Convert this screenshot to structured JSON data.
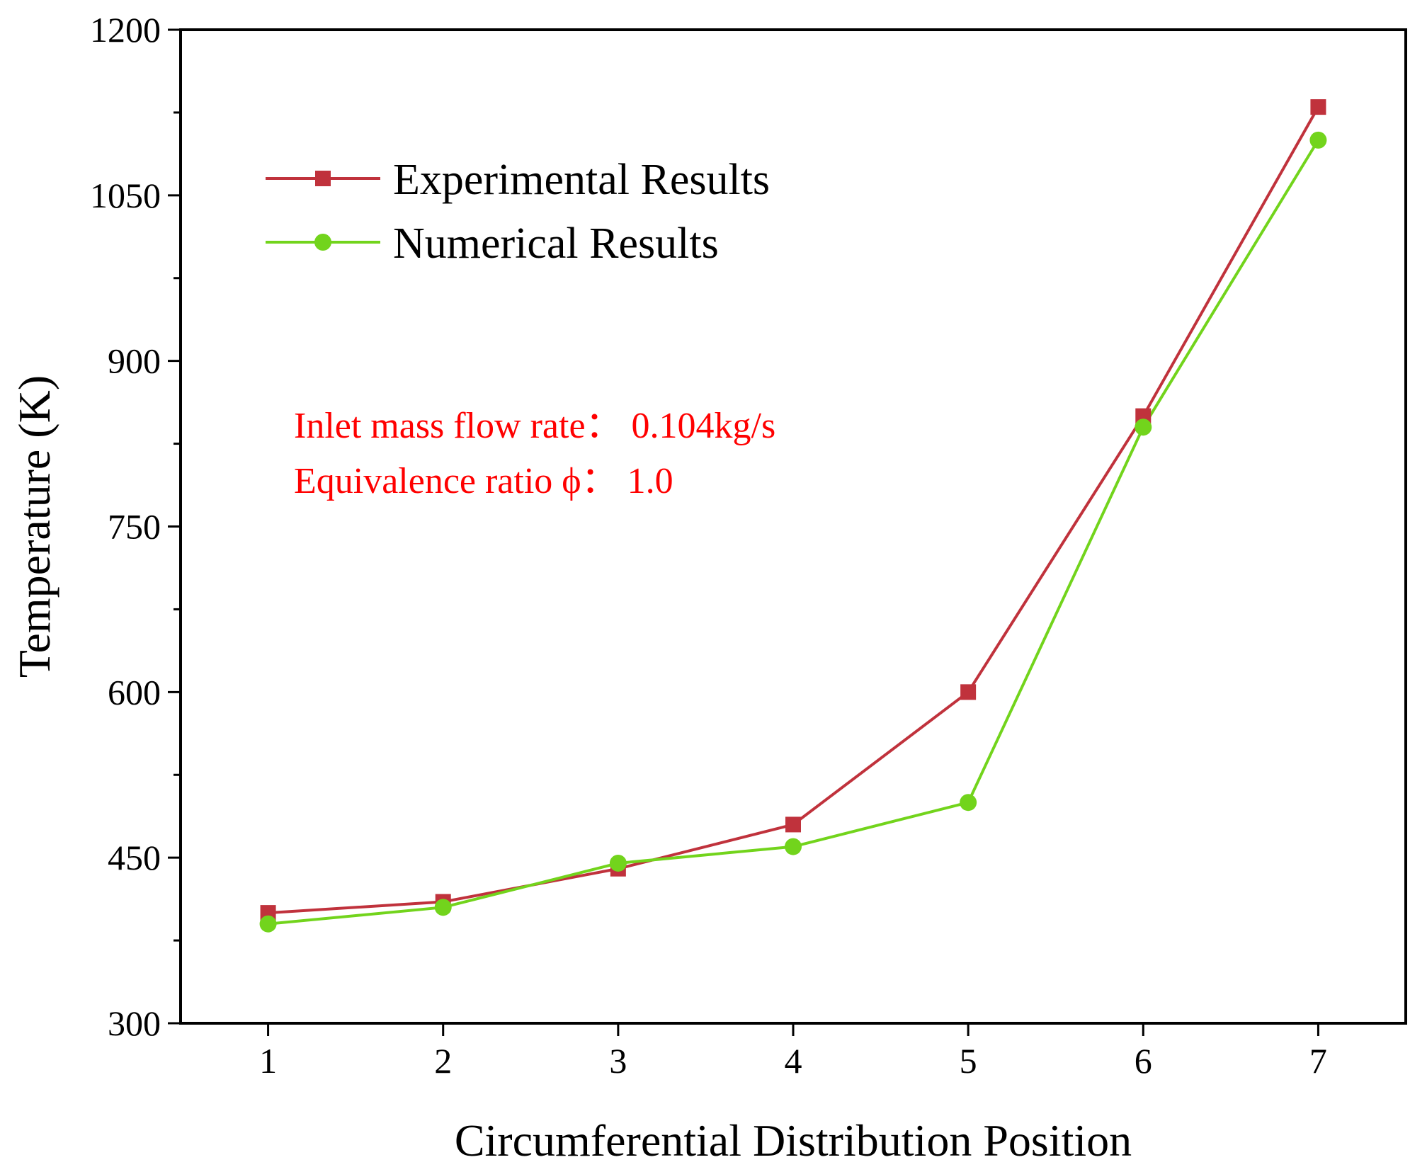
{
  "chart_data": {
    "type": "line",
    "title": "",
    "xlabel": "Circumferential Distribution Position",
    "ylabel": "Temperature (K)",
    "x": [
      1,
      2,
      3,
      4,
      5,
      6,
      7
    ],
    "xlim": [
      0.5,
      7.5
    ],
    "ylim": [
      300,
      1200
    ],
    "x_ticks": [
      1,
      2,
      3,
      4,
      5,
      6,
      7
    ],
    "y_ticks": [
      300,
      450,
      600,
      750,
      900,
      1050,
      1200
    ],
    "y_minor_step": 75,
    "grid": false,
    "legend_position": "top-left",
    "series": [
      {
        "name": "Experimental Results",
        "color": "#c0323c",
        "marker": "square",
        "values": [
          400,
          410,
          440,
          480,
          600,
          850,
          1130
        ]
      },
      {
        "name": "Numerical Results",
        "color": "#72d41c",
        "marker": "circle",
        "values": [
          390,
          405,
          445,
          460,
          500,
          840,
          1100
        ]
      }
    ],
    "annotations": [
      {
        "text": "Inlet mass flow rate：  0.104kg/s",
        "color": "#ff0000"
      },
      {
        "text": "Equivalence ratio ϕ：  1.0",
        "color": "#ff0000"
      }
    ]
  }
}
